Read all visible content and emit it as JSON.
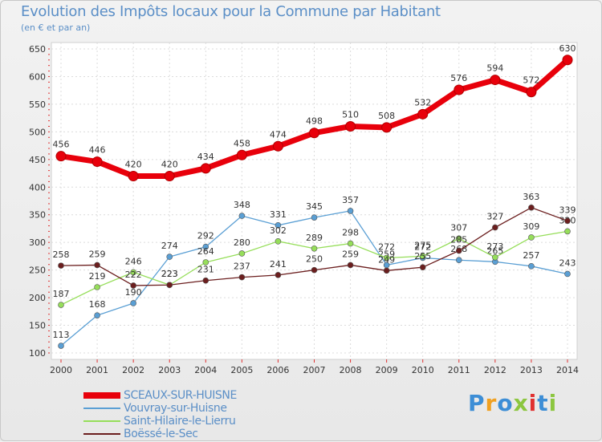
{
  "title": "Evolution des Impôts locaux pour la Commune par Habitant",
  "subtitle": "(en € et par an)",
  "logo_text": "Proxiti",
  "chart_data": {
    "type": "line",
    "x": [
      "2000",
      "2001",
      "2002",
      "2003",
      "2004",
      "2005",
      "2006",
      "2007",
      "2008",
      "2009",
      "2010",
      "2011",
      "2012",
      "2013",
      "2014"
    ],
    "yticks": [
      100,
      150,
      200,
      250,
      300,
      350,
      400,
      450,
      500,
      550,
      600,
      650
    ],
    "ylim": [
      100,
      650
    ],
    "grid": true,
    "legend_position": "bottom-left",
    "series": [
      {
        "name": "SCEAUX-SUR-HUISNE",
        "color": "#e8000b",
        "values": [
          456,
          446,
          420,
          420,
          434,
          458,
          474,
          498,
          510,
          508,
          532,
          576,
          594,
          572,
          630
        ]
      },
      {
        "name": "Vouvray-sur-Huisne",
        "color": "#5a9fd4",
        "values": [
          113,
          168,
          190,
          274,
          292,
          348,
          331,
          345,
          357,
          259,
          272,
          268,
          265,
          257,
          243
        ]
      },
      {
        "name": "Saint-Hilaire-le-Lierru",
        "color": "#96de5a",
        "values": [
          187,
          219,
          246,
          223,
          264,
          280,
          302,
          289,
          298,
          272,
          275,
          307,
          273,
          309,
          320
        ]
      },
      {
        "name": "Boëssé-le-Sec",
        "color": "#6b1e1e",
        "values": [
          258,
          259,
          222,
          223,
          231,
          237,
          241,
          250,
          259,
          249,
          255,
          285,
          327,
          363,
          339
        ]
      }
    ]
  },
  "colors": {
    "title": "#5b8fc7",
    "axis": "#e03030",
    "logo": [
      "#3d8ed6",
      "#f0a020",
      "#3d8ed6",
      "#8cc63f",
      "#e03030",
      "#3d8ed6",
      "#8cc63f"
    ]
  }
}
